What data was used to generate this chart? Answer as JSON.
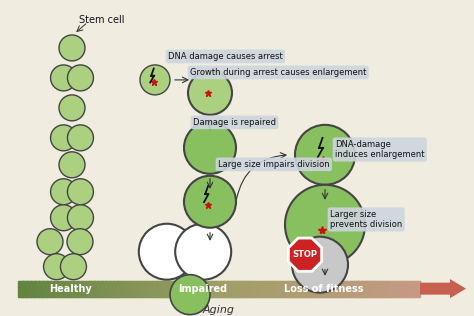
{
  "bg_color": "#f0ece0",
  "title": "Aging",
  "bar_labels": [
    "Healthy",
    "Impaired",
    "Loss of fitness"
  ],
  "green_fill": "#aad080",
  "green_dark": "#88c060",
  "gray_fill": "#c8c8c8",
  "white_fill": "#ffffff",
  "outline_color": "#444444",
  "red_star": "#cc1111",
  "label_bg": "#cdd5dd",
  "annotations": [
    "Stem cell",
    "DNA damage causes arrest",
    "Growth during arrest causes enlargement",
    "Damage is repaired",
    "Large size impairs division",
    "DNA-damage\ninduces enlargement",
    "Larger size\nprevents division"
  ]
}
